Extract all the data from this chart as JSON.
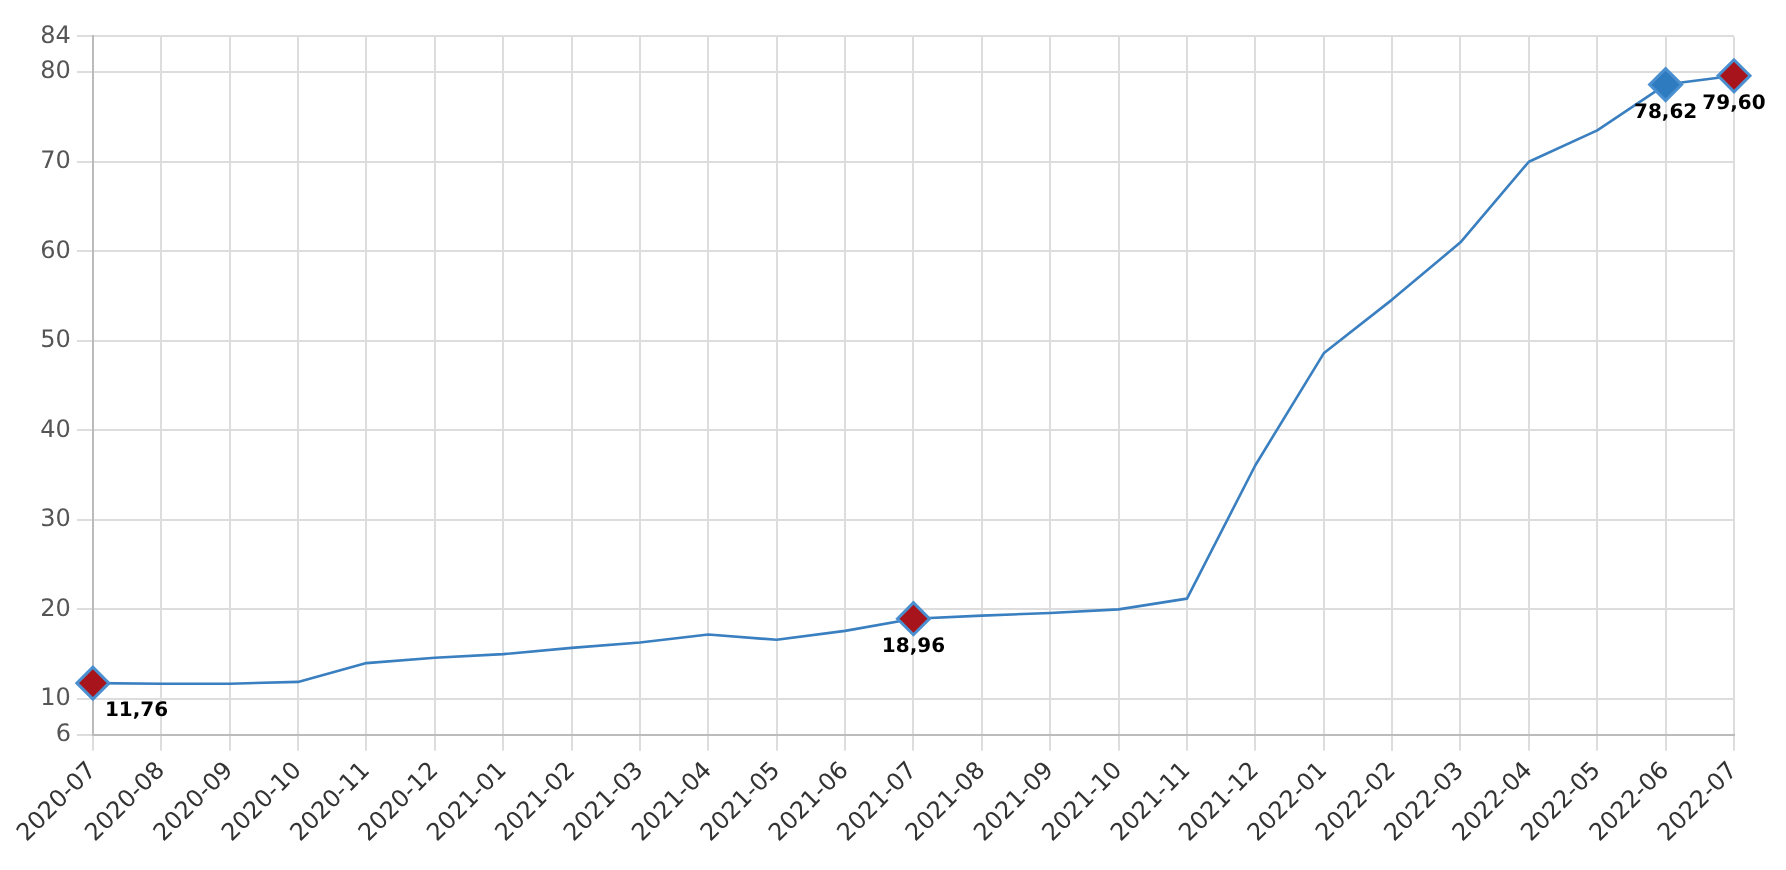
{
  "chart_data": {
    "type": "line",
    "categories": [
      "2020-07",
      "2020-08",
      "2020-09",
      "2020-10",
      "2020-11",
      "2020-12",
      "2021-01",
      "2021-02",
      "2021-03",
      "2021-04",
      "2021-05",
      "2021-06",
      "2021-07",
      "2021-08",
      "2021-09",
      "2021-10",
      "2021-11",
      "2021-12",
      "2022-01",
      "2022-02",
      "2022-03",
      "2022-04",
      "2022-05",
      "2022-06",
      "2022-07"
    ],
    "series": [
      {
        "color": "#3a7fc0",
        "marker": "none",
        "values": [
          11.76,
          11.7,
          11.7,
          11.9,
          14.0,
          14.6,
          15.0,
          15.7,
          16.3,
          17.2,
          16.6,
          17.6,
          18.96,
          19.3,
          19.6,
          20.0,
          21.2,
          36.1,
          48.6,
          54.6,
          61.0,
          70.0,
          73.5,
          78.62,
          79.6
        ]
      },
      {
        "type": "scatter",
        "color": "#a8141c",
        "marker": "diamond",
        "values": [
          11.76,
          null,
          null,
          null,
          null,
          null,
          null,
          null,
          null,
          null,
          null,
          null,
          18.96,
          null,
          null,
          null,
          null,
          null,
          null,
          null,
          null,
          null,
          null,
          null,
          79.6
        ],
        "value_labels": [
          "11,76",
          null,
          null,
          null,
          null,
          null,
          null,
          null,
          null,
          null,
          null,
          null,
          "18,96",
          null,
          null,
          null,
          null,
          null,
          null,
          null,
          null,
          null,
          null,
          null,
          "79,60"
        ]
      },
      {
        "type": "scatter",
        "color": "#2e7bbf",
        "marker": "diamond",
        "values": [
          null,
          null,
          null,
          null,
          null,
          null,
          null,
          null,
          null,
          null,
          null,
          null,
          null,
          null,
          null,
          null,
          null,
          null,
          null,
          null,
          null,
          null,
          null,
          78.62,
          null
        ],
        "value_labels": [
          null,
          null,
          null,
          null,
          null,
          null,
          null,
          null,
          null,
          null,
          null,
          null,
          null,
          null,
          null,
          null,
          null,
          null,
          null,
          null,
          null,
          null,
          null,
          "78,62",
          null
        ]
      }
    ],
    "ylim": [
      6,
      84
    ],
    "yticks": [
      6,
      10,
      20,
      30,
      40,
      50,
      60,
      70,
      80,
      84
    ],
    "grid": true
  }
}
